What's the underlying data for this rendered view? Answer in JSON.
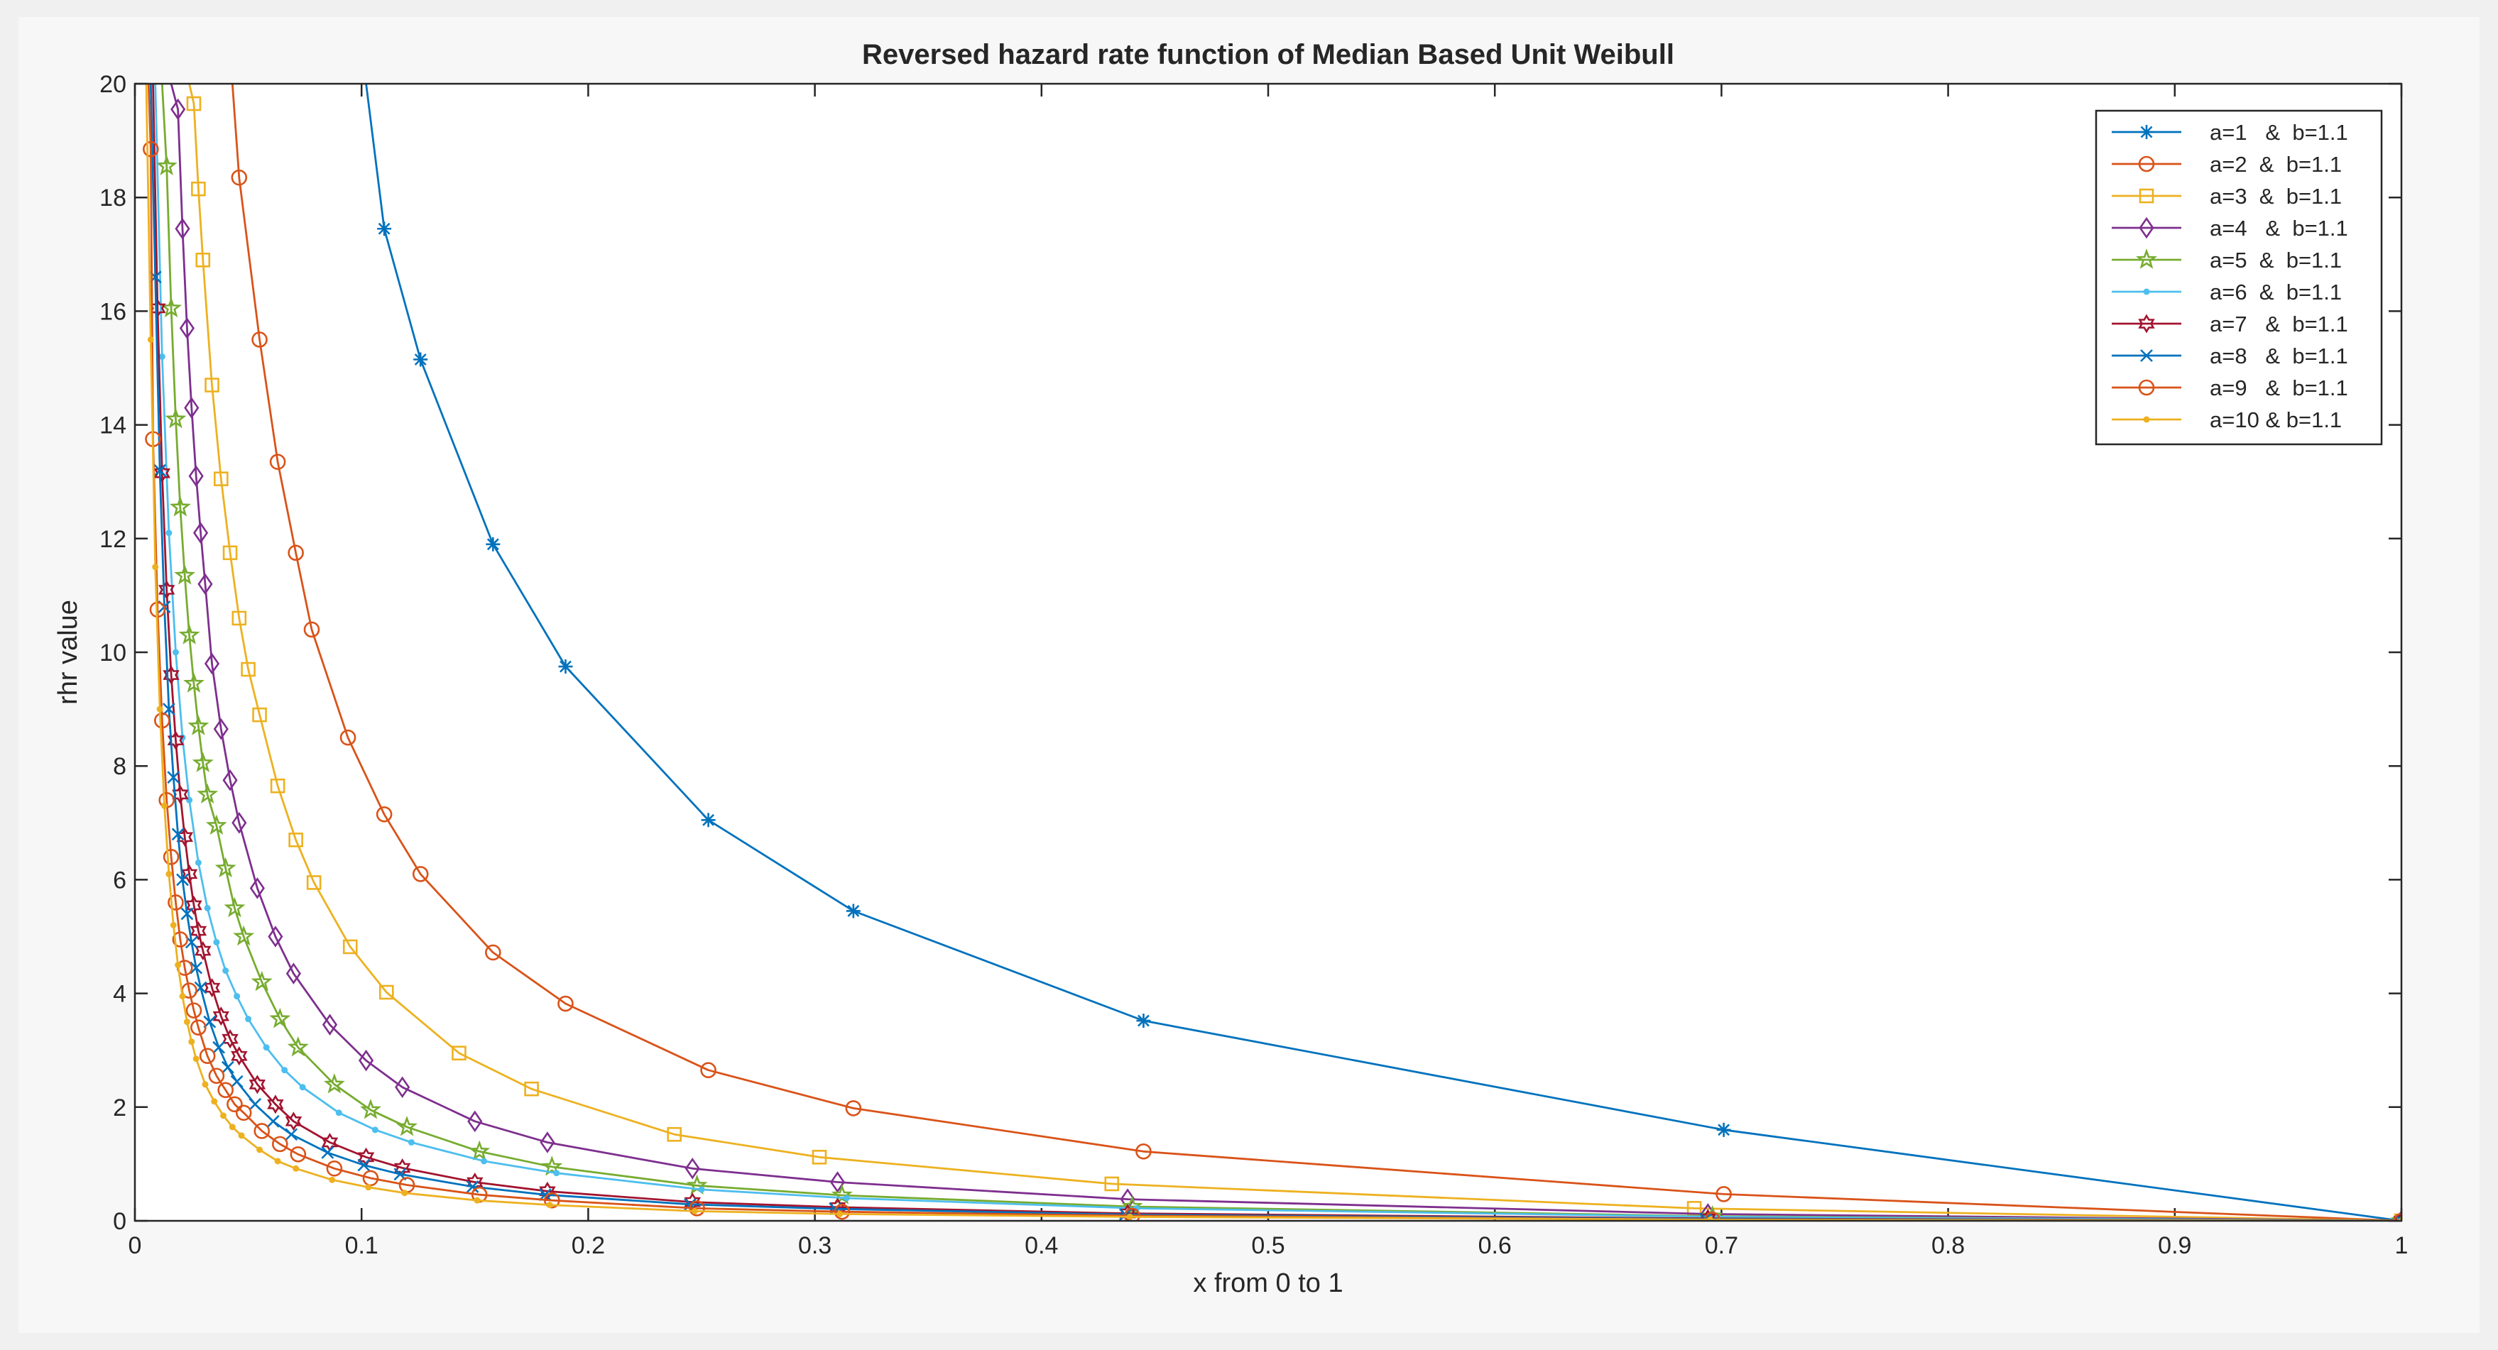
{
  "chart_data": {
    "type": "line",
    "title": "Reversed hazard rate function of Median Based  Unit  Weibull",
    "xlabel": "x from 0 to 1",
    "ylabel": "rhr value",
    "xlim": [
      0,
      1
    ],
    "ylim": [
      0,
      20
    ],
    "xticks": [
      "0",
      "0.1",
      "0.2",
      "0.3",
      "0.4",
      "0.5",
      "0.6",
      "0.7",
      "0.8",
      "0.9",
      "1"
    ],
    "yticks": [
      "0",
      "2",
      "4",
      "6",
      "8",
      "10",
      "12",
      "14",
      "16",
      "18",
      "20"
    ],
    "grid": false,
    "legend_position": "top-right",
    "colors": {
      "figure_bg": "#f0f0f0",
      "axes_bg": "#ffffff",
      "axis_line": "#262626"
    },
    "series": [
      {
        "name": "a=1   &  b=1.1",
        "color": "#0072bd",
        "marker": "asterisk",
        "x": [
          0.102,
          0.11,
          0.126,
          0.158,
          0.19,
          0.253,
          0.317,
          0.445,
          0.701,
          1.0
        ],
        "y": [
          20.0,
          17.45,
          15.15,
          11.9,
          9.75,
          7.05,
          5.45,
          3.52,
          1.6,
          0.0
        ]
      },
      {
        "name": "a=2  &  b=1.1",
        "color": "#d95319",
        "marker": "circle",
        "x": [
          0.043,
          0.046,
          0.055,
          0.063,
          0.071,
          0.078,
          0.094,
          0.11,
          0.126,
          0.158,
          0.19,
          0.253,
          0.317,
          0.445,
          0.701,
          1.0
        ],
        "y": [
          20.0,
          18.35,
          15.5,
          13.35,
          11.75,
          10.4,
          8.5,
          7.15,
          6.1,
          4.72,
          3.82,
          2.65,
          1.98,
          1.22,
          0.47,
          0.0
        ]
      },
      {
        "name": "a=3  &  b=1.1",
        "color": "#edb120",
        "marker": "square",
        "x": [
          0.024,
          0.026,
          0.028,
          0.03,
          0.034,
          0.038,
          0.042,
          0.046,
          0.05,
          0.055,
          0.063,
          0.071,
          0.079,
          0.095,
          0.111,
          0.143,
          0.175,
          0.238,
          0.302,
          0.431,
          0.688,
          1.0
        ],
        "y": [
          20.0,
          19.65,
          18.15,
          16.9,
          14.7,
          13.05,
          11.75,
          10.6,
          9.7,
          8.9,
          7.65,
          6.7,
          5.95,
          4.82,
          4.02,
          2.95,
          2.32,
          1.52,
          1.12,
          0.65,
          0.22,
          0.0
        ]
      },
      {
        "name": "a=4   &  b=1.1",
        "color": "#7e2f8e",
        "marker": "diamond",
        "x": [
          0.016,
          0.019,
          0.021,
          0.023,
          0.025,
          0.027,
          0.029,
          0.031,
          0.034,
          0.038,
          0.042,
          0.046,
          0.054,
          0.062,
          0.07,
          0.086,
          0.102,
          0.118,
          0.15,
          0.182,
          0.246,
          0.31,
          0.438,
          0.694,
          1.0
        ],
        "y": [
          20.0,
          19.55,
          17.45,
          15.7,
          14.3,
          13.1,
          12.1,
          11.2,
          9.8,
          8.65,
          7.75,
          7.0,
          5.85,
          5.0,
          4.35,
          3.45,
          2.82,
          2.35,
          1.75,
          1.38,
          0.92,
          0.68,
          0.38,
          0.12,
          0.0
        ]
      },
      {
        "name": "a=5  &  b=1.1",
        "color": "#77ac30",
        "marker": "pentagram",
        "x": [
          0.012,
          0.014,
          0.016,
          0.018,
          0.02,
          0.022,
          0.024,
          0.026,
          0.028,
          0.03,
          0.032,
          0.036,
          0.04,
          0.044,
          0.048,
          0.056,
          0.064,
          0.072,
          0.088,
          0.104,
          0.12,
          0.152,
          0.184,
          0.248,
          0.312,
          0.44,
          0.696,
          1.0
        ],
        "y": [
          20.0,
          18.55,
          16.05,
          14.1,
          12.55,
          11.35,
          10.3,
          9.45,
          8.7,
          8.05,
          7.5,
          6.95,
          6.2,
          5.5,
          5.0,
          4.2,
          3.55,
          3.05,
          2.4,
          1.95,
          1.65,
          1.22,
          0.95,
          0.62,
          0.45,
          0.25,
          0.08,
          0.0
        ]
      },
      {
        "name": "a=6  &  b=1.1",
        "color": "#4dbeee",
        "marker": "point",
        "x": [
          0.009,
          0.012,
          0.015,
          0.018,
          0.021,
          0.024,
          0.028,
          0.032,
          0.036,
          0.04,
          0.045,
          0.05,
          0.058,
          0.066,
          0.074,
          0.09,
          0.106,
          0.122,
          0.154,
          0.186,
          0.25,
          0.314,
          0.442,
          0.698,
          1.0
        ],
        "y": [
          20.0,
          15.2,
          12.1,
          10.0,
          8.5,
          7.4,
          6.3,
          5.5,
          4.9,
          4.4,
          3.95,
          3.55,
          3.05,
          2.65,
          2.35,
          1.9,
          1.6,
          1.38,
          1.05,
          0.84,
          0.55,
          0.4,
          0.22,
          0.07,
          0.0
        ]
      },
      {
        "name": "a=7   &  b=1.1",
        "color": "#a2142f",
        "marker": "hexagram",
        "x": [
          0.008,
          0.01,
          0.012,
          0.014,
          0.016,
          0.018,
          0.02,
          0.022,
          0.024,
          0.026,
          0.028,
          0.03,
          0.034,
          0.038,
          0.042,
          0.046,
          0.054,
          0.062,
          0.07,
          0.086,
          0.102,
          0.118,
          0.15,
          0.182,
          0.246,
          0.31,
          0.438,
          0.694,
          1.0
        ],
        "y": [
          20.0,
          16.05,
          13.15,
          11.1,
          9.6,
          8.45,
          7.5,
          6.75,
          6.1,
          5.55,
          5.1,
          4.75,
          4.1,
          3.6,
          3.2,
          2.9,
          2.4,
          2.05,
          1.75,
          1.38,
          1.12,
          0.93,
          0.68,
          0.52,
          0.33,
          0.24,
          0.13,
          0.04,
          0.0
        ]
      },
      {
        "name": "a=8   &  b=1.1",
        "color": "#0072bd",
        "marker": "cross",
        "x": [
          0.007,
          0.009,
          0.011,
          0.013,
          0.015,
          0.017,
          0.019,
          0.021,
          0.023,
          0.025,
          0.027,
          0.029,
          0.033,
          0.037,
          0.041,
          0.045,
          0.053,
          0.061,
          0.069,
          0.085,
          0.101,
          0.117,
          0.149,
          0.181,
          0.245,
          0.309,
          0.437,
          0.693,
          1.0
        ],
        "y": [
          20.0,
          16.6,
          13.2,
          10.8,
          9.0,
          7.8,
          6.8,
          6.0,
          5.4,
          4.9,
          4.45,
          4.1,
          3.5,
          3.05,
          2.7,
          2.45,
          2.05,
          1.75,
          1.52,
          1.2,
          0.98,
          0.82,
          0.6,
          0.46,
          0.29,
          0.21,
          0.11,
          0.03,
          0.0
        ]
      },
      {
        "name": "a=9   &  b=1.1",
        "color": "#d95319",
        "marker": "circle",
        "x": [
          0.006,
          0.007,
          0.008,
          0.01,
          0.012,
          0.014,
          0.016,
          0.018,
          0.02,
          0.022,
          0.024,
          0.026,
          0.028,
          0.032,
          0.036,
          0.04,
          0.044,
          0.048,
          0.056,
          0.064,
          0.072,
          0.088,
          0.104,
          0.12,
          0.152,
          0.184,
          0.248,
          0.312,
          0.44,
          0.696,
          1.0
        ],
        "y": [
          20.0,
          18.85,
          13.75,
          10.75,
          8.8,
          7.4,
          6.4,
          5.6,
          4.95,
          4.45,
          4.05,
          3.7,
          3.4,
          2.9,
          2.55,
          2.3,
          2.05,
          1.9,
          1.58,
          1.35,
          1.17,
          0.92,
          0.75,
          0.63,
          0.46,
          0.36,
          0.22,
          0.16,
          0.09,
          0.02,
          0.0
        ]
      },
      {
        "name": "a=10 & b=1.1",
        "color": "#edb120",
        "marker": "point",
        "x": [
          0.005,
          0.007,
          0.009,
          0.011,
          0.013,
          0.015,
          0.017,
          0.019,
          0.021,
          0.023,
          0.025,
          0.027,
          0.031,
          0.035,
          0.039,
          0.043,
          0.047,
          0.055,
          0.063,
          0.071,
          0.087,
          0.103,
          0.119,
          0.151,
          0.183,
          0.247,
          0.311,
          0.439,
          0.695,
          1.0
        ],
        "y": [
          20.0,
          15.5,
          11.5,
          9.0,
          7.3,
          6.1,
          5.2,
          4.5,
          3.95,
          3.5,
          3.15,
          2.85,
          2.4,
          2.1,
          1.85,
          1.65,
          1.5,
          1.25,
          1.05,
          0.92,
          0.72,
          0.59,
          0.49,
          0.36,
          0.28,
          0.17,
          0.12,
          0.07,
          0.02,
          0.0
        ]
      }
    ]
  }
}
